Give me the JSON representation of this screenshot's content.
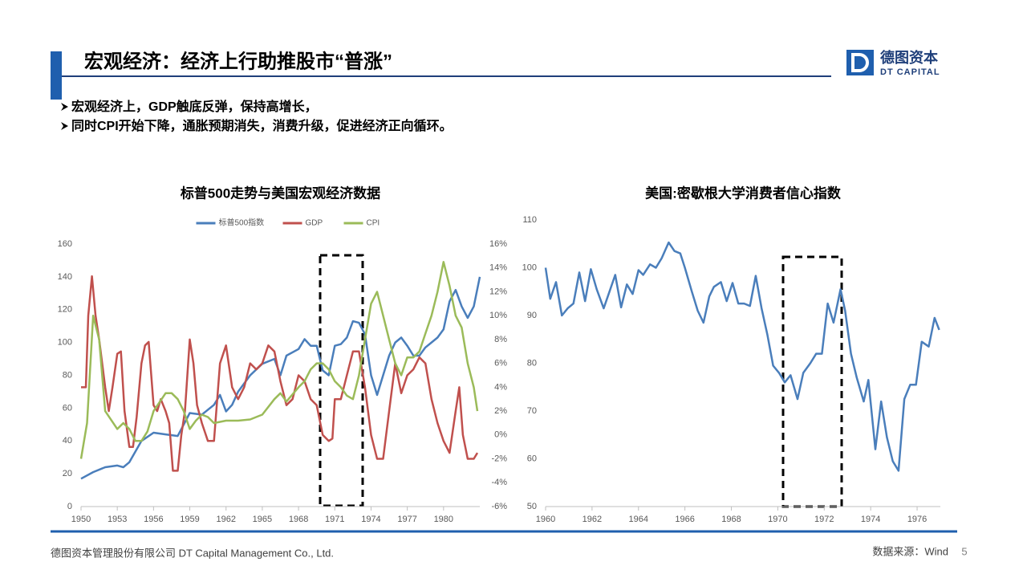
{
  "header": {
    "title": "宏观经济：经济上行助推股市“普涨”",
    "logo_cn": "德图资本",
    "logo_en": "DT CAPITAL"
  },
  "bullets": [
    "宏观经济上，GDP触底反弹，保持高增长，",
    "同时CPI开始下降，通胀预期消失，消费升级，促进经济正向循环。"
  ],
  "footer": {
    "company": "德图资本管理股份有限公司  DT Capital  Management  Co., Ltd.",
    "source": "数据来源：Wind",
    "page": "5"
  },
  "chart_data": [
    {
      "type": "line",
      "title": "标普500走势与美国宏观经济数据",
      "xlim": [
        1950,
        1983
      ],
      "xticks": [
        1950,
        1953,
        1956,
        1959,
        1962,
        1965,
        1968,
        1971,
        1974,
        1977,
        1980
      ],
      "ylim": [
        0,
        160
      ],
      "yticks": [
        0,
        20,
        40,
        60,
        80,
        100,
        120,
        140,
        160
      ],
      "y2lim": [
        -6,
        16
      ],
      "y2ticks": [
        {
          "value": -6,
          "label": "-6%"
        },
        {
          "value": -4,
          "label": "-4%"
        },
        {
          "value": -2,
          "label": "-2%"
        },
        {
          "value": 0,
          "label": "0%"
        },
        {
          "value": 2,
          "label": "2%"
        },
        {
          "value": 4,
          "label": "4%"
        },
        {
          "value": 6,
          "label": "6%"
        },
        {
          "value": 8,
          "label": "8%"
        },
        {
          "value": 10,
          "label": "10%"
        },
        {
          "value": 12,
          "label": "12%"
        },
        {
          "value": 14,
          "label": "14%"
        },
        {
          "value": 16,
          "label": "16%"
        }
      ],
      "legend": "top",
      "series": [
        {
          "name": "标普500指数",
          "color": "#4a7ebb",
          "x": [
            1950,
            1951,
            1952,
            1953,
            1953.5,
            1954,
            1955,
            1956,
            1957,
            1958,
            1959,
            1960,
            1961,
            1961.5,
            1962,
            1962.5,
            1963,
            1964,
            1965,
            1966,
            1966.5,
            1967,
            1968,
            1968.5,
            1969,
            1969.5,
            1970,
            1970.5,
            1971,
            1971.5,
            1972,
            1972.5,
            1973,
            1973.5,
            1974,
            1974.5,
            1975,
            1975.5,
            1976,
            1976.5,
            1977,
            1977.5,
            1978,
            1978.5,
            1979,
            1979.5,
            1980,
            1980.5,
            1981,
            1981.5,
            1982,
            1982.5,
            1983
          ],
          "values": [
            17,
            21,
            24,
            25,
            24,
            27,
            40,
            45,
            44,
            43,
            57,
            56,
            62,
            68,
            58,
            62,
            70,
            80,
            87,
            90,
            80,
            92,
            96,
            102,
            98,
            98,
            83,
            80,
            98,
            99,
            103,
            113,
            112,
            105,
            80,
            68,
            80,
            92,
            100,
            103,
            98,
            92,
            92,
            97,
            100,
            103,
            108,
            125,
            132,
            122,
            115,
            122,
            140
          ]
        },
        {
          "name": "GDP",
          "color": "#c0504d",
          "axis": "y2",
          "x": [
            1950,
            1950.4,
            1950.6,
            1950.9,
            1951.2,
            1951.5,
            1952,
            1952.3,
            1952.6,
            1953,
            1953.3,
            1953.6,
            1954,
            1954.3,
            1954.6,
            1955,
            1955.3,
            1955.6,
            1956,
            1956.3,
            1956.6,
            1957,
            1957.3,
            1957.6,
            1958,
            1958.3,
            1958.6,
            1959,
            1959.3,
            1959.6,
            1960,
            1960.5,
            1961,
            1961.5,
            1962,
            1962.5,
            1963,
            1963.5,
            1964,
            1964.5,
            1965,
            1965.5,
            1966,
            1966.5,
            1967,
            1967.5,
            1968,
            1968.5,
            1969,
            1969.5,
            1970,
            1970.5,
            1970.8,
            1971,
            1971.5,
            1972,
            1972.5,
            1973,
            1973.5,
            1974,
            1974.5,
            1975,
            1975.5,
            1976,
            1976.5,
            1977,
            1977.5,
            1978,
            1978.5,
            1979,
            1979.5,
            1980,
            1980.5,
            1981,
            1981.3,
            1981.6,
            1982,
            1982.5,
            1982.8
          ],
          "values": [
            4,
            4,
            10,
            13.3,
            10,
            8,
            4,
            2,
            4,
            6.8,
            7,
            2,
            -1,
            -1,
            1.5,
            6,
            7.5,
            7.8,
            2.5,
            2,
            3,
            2,
            1,
            -3,
            -3,
            0,
            2,
            8,
            6,
            2.5,
            1,
            -0.5,
            -0.5,
            6,
            7.5,
            4,
            3,
            4,
            6,
            5.5,
            6,
            7.5,
            7,
            4.5,
            2.5,
            3,
            5,
            4.5,
            3,
            2.5,
            0,
            -0.5,
            -0.3,
            3,
            3,
            5,
            7,
            7,
            4,
            0,
            -2,
            -2,
            2,
            6,
            3.5,
            5,
            5.5,
            6.5,
            6,
            3,
            1,
            -0.5,
            -1.5,
            2,
            4,
            0,
            -2,
            -2,
            -1.5
          ]
        },
        {
          "name": "CPI",
          "color": "#9bbb59",
          "axis": "y2",
          "x": [
            1950,
            1950.5,
            1951,
            1951.5,
            1952,
            1953,
            1953.5,
            1954,
            1954.5,
            1955,
            1955.5,
            1956,
            1957,
            1957.5,
            1958,
            1958.5,
            1959,
            1959.5,
            1960,
            1960.5,
            1961,
            1962,
            1963,
            1964,
            1965,
            1966,
            1966.5,
            1967,
            1968,
            1968.5,
            1969,
            1969.5,
            1970,
            1970.5,
            1971,
            1971.5,
            1972,
            1972.5,
            1973,
            1973.5,
            1974,
            1974.5,
            1975,
            1975.5,
            1976,
            1976.5,
            1977,
            1977.5,
            1978,
            1978.5,
            1979,
            1979.5,
            1980,
            1980.5,
            1981,
            1981.5,
            1982,
            1982.5,
            1982.8
          ],
          "values": [
            -2,
            1,
            10,
            8,
            2,
            0.5,
            1,
            0.5,
            -0.5,
            -0.5,
            0.3,
            2,
            3.5,
            3.5,
            3,
            2,
            0.5,
            1.2,
            1.7,
            1.5,
            1,
            1.2,
            1.2,
            1.3,
            1.7,
            3,
            3.5,
            2.8,
            4,
            4.5,
            5.5,
            6,
            6,
            5.5,
            4.5,
            4,
            3.3,
            3,
            5,
            8,
            11,
            12,
            10,
            8,
            6,
            5,
            6.5,
            6.5,
            7,
            8.5,
            10,
            12,
            14.5,
            12.5,
            10,
            9,
            6,
            4,
            2
          ]
        }
      ]
    },
    {
      "type": "line",
      "title": "美国:密歇根大学消费者信心指数",
      "xlim": [
        1960,
        1977
      ],
      "xticks": [
        1960,
        1962,
        1964,
        1966,
        1968,
        1970,
        1972,
        1974,
        1976
      ],
      "ylim": [
        50,
        110
      ],
      "yticks": [
        50,
        60,
        70,
        80,
        90,
        100,
        110
      ],
      "x": [
        1960,
        1960.2,
        1960.45,
        1960.7,
        1960.95,
        1961.2,
        1961.45,
        1961.7,
        1961.95,
        1962.2,
        1962.5,
        1962.75,
        1963,
        1963.25,
        1963.5,
        1963.75,
        1964,
        1964.2,
        1964.5,
        1964.75,
        1965,
        1965.3,
        1965.55,
        1965.8,
        1966,
        1966.3,
        1966.55,
        1966.8,
        1967.05,
        1967.25,
        1967.55,
        1967.8,
        1968.05,
        1968.3,
        1968.55,
        1968.8,
        1969.05,
        1969.3,
        1969.55,
        1969.8,
        1970.05,
        1970.3,
        1970.55,
        1970.85,
        1971.1,
        1971.4,
        1971.65,
        1971.9,
        1972.15,
        1972.4,
        1972.7,
        1972.9,
        1973.15,
        1973.4,
        1973.7,
        1973.9,
        1974.2,
        1974.45,
        1974.7,
        1974.95,
        1975.2,
        1975.45,
        1975.7,
        1975.95,
        1976.2,
        1976.5,
        1976.75,
        1976.95
      ],
      "series": [
        {
          "color": "#4a7ebb",
          "values": [
            100,
            93.5,
            97,
            90,
            91.5,
            92.5,
            99,
            93,
            99.7,
            95.5,
            91.5,
            95,
            98.5,
            91.7,
            96.5,
            94.5,
            99.5,
            98.5,
            100.7,
            100,
            102,
            105.3,
            103.5,
            103,
            100,
            95,
            91,
            88.5,
            94,
            96,
            97,
            93,
            96.8,
            92.5,
            92.5,
            92,
            98.3,
            91.5,
            86,
            79.5,
            78,
            76,
            77.5,
            72.5,
            78,
            80,
            82,
            82,
            92.5,
            88.5,
            95.5,
            91,
            82,
            77,
            72,
            76.5,
            62,
            72,
            64.5,
            59.5,
            57.5,
            72.5,
            75.5,
            75.5,
            84.5,
            83.5,
            89.5,
            87
          ]
        }
      ]
    }
  ]
}
